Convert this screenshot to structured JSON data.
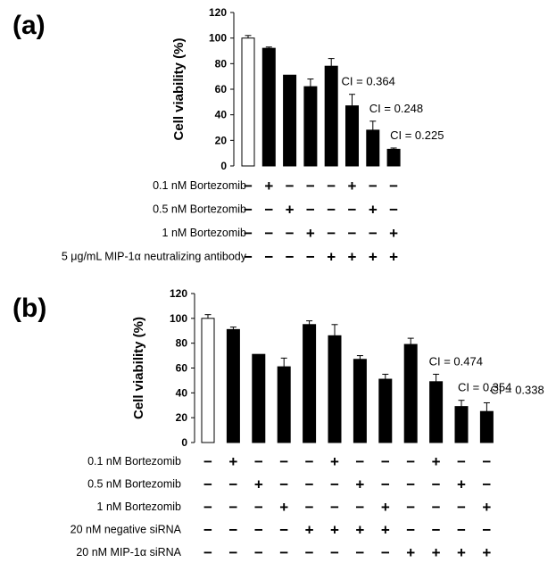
{
  "chart_data": [
    {
      "type": "bar",
      "panel_label": "(a)",
      "ylabel": "Cell viability (%)",
      "ylim": [
        0,
        120
      ],
      "yticks": [
        0,
        20,
        40,
        60,
        80,
        100,
        120
      ],
      "grid": false,
      "values": [
        100,
        92,
        71,
        62,
        78,
        47,
        28,
        13
      ],
      "errors": [
        2,
        1,
        0,
        6,
        6,
        9,
        7,
        1
      ],
      "bar_colors": [
        "#ffffff",
        "#000000",
        "#000000",
        "#000000",
        "#000000",
        "#000000",
        "#000000",
        "#000000"
      ],
      "annotations": [
        {
          "bar": 5,
          "text": "CI = 0.364"
        },
        {
          "bar": 6,
          "text": "CI = 0.248"
        },
        {
          "bar": 7,
          "text": "CI = 0.225"
        }
      ],
      "conditions": [
        {
          "label": "0.1 nM Bortezomib",
          "signs": [
            "−",
            "+",
            "−",
            "−",
            "−",
            "+",
            "−",
            "−"
          ]
        },
        {
          "label": "0.5 nM Bortezomib",
          "signs": [
            "−",
            "−",
            "+",
            "−",
            "−",
            "−",
            "+",
            "−"
          ]
        },
        {
          "label": "1 nM Bortezomib",
          "signs": [
            "−",
            "−",
            "−",
            "+",
            "−",
            "−",
            "−",
            "+"
          ]
        },
        {
          "label": "5 μg/mL MIP-1α neutralizing antibody",
          "signs": [
            "−",
            "−",
            "−",
            "−",
            "+",
            "+",
            "+",
            "+"
          ]
        }
      ]
    },
    {
      "type": "bar",
      "panel_label": "(b)",
      "ylabel": "Cell viability (%)",
      "ylim": [
        0,
        120
      ],
      "yticks": [
        0,
        20,
        40,
        60,
        80,
        100,
        120
      ],
      "grid": false,
      "values": [
        100,
        91,
        71,
        61,
        95,
        86,
        67,
        51,
        79,
        49,
        29,
        25
      ],
      "errors": [
        3,
        2,
        0,
        7,
        3,
        9,
        3,
        4,
        5,
        6,
        5,
        7
      ],
      "bar_colors": [
        "#ffffff",
        "#000000",
        "#000000",
        "#000000",
        "#000000",
        "#000000",
        "#000000",
        "#000000",
        "#000000",
        "#000000",
        "#000000",
        "#000000"
      ],
      "annotations": [
        {
          "bar": 9,
          "text": "CI = 0.474"
        },
        {
          "bar": 10,
          "text": "CI = 0.354"
        },
        {
          "bar": 11,
          "text": "CI = 0.338"
        }
      ],
      "conditions": [
        {
          "label": "0.1 nM Bortezomib",
          "signs": [
            "−",
            "+",
            "−",
            "−",
            "−",
            "+",
            "−",
            "−",
            "−",
            "+",
            "−",
            "−"
          ]
        },
        {
          "label": "0.5 nM Bortezomib",
          "signs": [
            "−",
            "−",
            "+",
            "−",
            "−",
            "−",
            "+",
            "−",
            "−",
            "−",
            "+",
            "−"
          ]
        },
        {
          "label": "1 nM Bortezomib",
          "signs": [
            "−",
            "−",
            "−",
            "+",
            "−",
            "−",
            "−",
            "+",
            "−",
            "−",
            "−",
            "+"
          ]
        },
        {
          "label": "20 nM negative siRNA",
          "signs": [
            "−",
            "−",
            "−",
            "−",
            "+",
            "+",
            "+",
            "+",
            "−",
            "−",
            "−",
            "−"
          ]
        },
        {
          "label": "20 nM MIP-1α siRNA",
          "signs": [
            "−",
            "−",
            "−",
            "−",
            "−",
            "−",
            "−",
            "−",
            "+",
            "+",
            "+",
            "+"
          ]
        }
      ]
    }
  ]
}
